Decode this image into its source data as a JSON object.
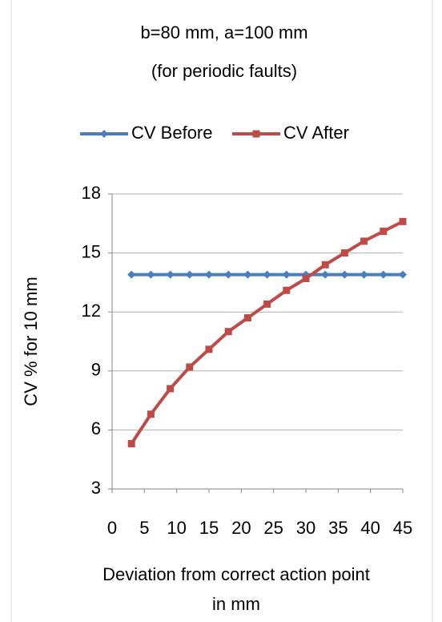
{
  "chart_data": {
    "type": "line",
    "title": [
      "b=80 mm, a=100 mm",
      "(for periodic faults)"
    ],
    "xlabel": [
      "Deviation from correct  action point",
      "in mm"
    ],
    "ylabel": "CV %  for 10 mm",
    "x": [
      3,
      6,
      9,
      12,
      15,
      18,
      21,
      24,
      27,
      30,
      33,
      36,
      39,
      42,
      45
    ],
    "series": [
      {
        "name": "CV Before",
        "color": "#4a7ebb",
        "marker": "diamond",
        "values": [
          13.9,
          13.9,
          13.9,
          13.9,
          13.9,
          13.9,
          13.9,
          13.9,
          13.9,
          13.9,
          13.9,
          13.9,
          13.9,
          13.9,
          13.9
        ]
      },
      {
        "name": "CV After",
        "color": "#be4b48",
        "marker": "square",
        "values": [
          5.3,
          6.8,
          8.1,
          9.2,
          10.1,
          11.0,
          11.7,
          12.4,
          13.1,
          13.7,
          14.4,
          15.0,
          15.6,
          16.1,
          16.6
        ]
      }
    ],
    "xlim": [
      0,
      45
    ],
    "xticks": [
      0,
      5,
      10,
      15,
      20,
      25,
      30,
      35,
      40,
      45
    ],
    "ylim": [
      3,
      18
    ],
    "yticks": [
      3,
      6,
      9,
      12,
      15,
      18
    ],
    "grid": true,
    "legend": "top"
  }
}
